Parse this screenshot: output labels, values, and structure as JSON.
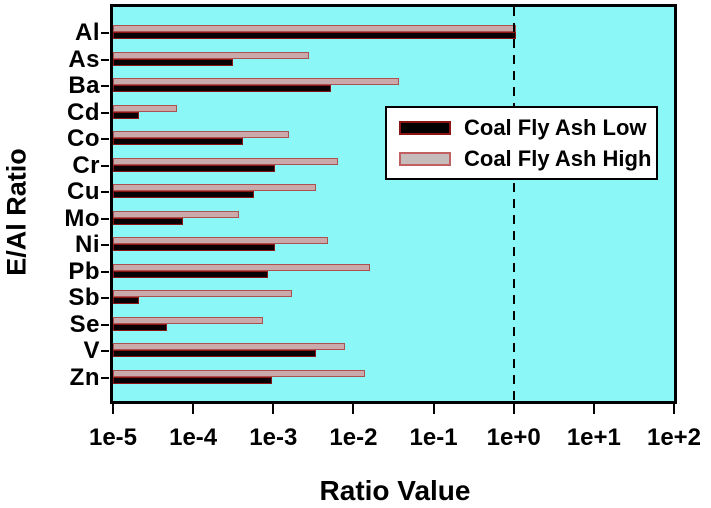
{
  "chart_data": {
    "type": "bar",
    "orientation": "horizontal",
    "xscale": "log",
    "title": "",
    "xlabel": "Ratio Value",
    "ylabel": "E/Al Ratio",
    "xlim": [
      1e-05,
      100.0
    ],
    "xticks": [
      "1e-5",
      "1e-4",
      "1e-3",
      "1e-2",
      "1e-1",
      "1e+0",
      "1e+1",
      "1e+2"
    ],
    "categories": [
      "Al",
      "As",
      "Ba",
      "Cd",
      "Co",
      "Cr",
      "Cu",
      "Mo",
      "Ni",
      "Pb",
      "Sb",
      "Se",
      "V",
      "Zn"
    ],
    "series": [
      {
        "name": "Coal Fly Ash Low",
        "values": [
          1.0,
          0.0003,
          0.005,
          2e-05,
          0.0004,
          0.001,
          0.00055,
          7e-05,
          0.001,
          0.0008,
          2e-05,
          4.5e-05,
          0.0032,
          0.0009
        ]
      },
      {
        "name": "Coal Fly Ash High",
        "values": [
          1.0,
          0.0026,
          0.035,
          6e-05,
          0.0015,
          0.006,
          0.0032,
          0.00035,
          0.0045,
          0.015,
          0.0016,
          0.0007,
          0.0075,
          0.013
        ]
      }
    ],
    "reference_line_x": 1.0,
    "legend_position": "upper-right-of-center",
    "grid": false
  },
  "colors": {
    "plot_background": "#8BF7F7",
    "low_fill": "#000000",
    "low_border": "#8B1515",
    "high_fill": "#C9A9A9",
    "high_border": "#AD5050",
    "frame": "#000000",
    "legend_background": "#FFFFFF"
  }
}
